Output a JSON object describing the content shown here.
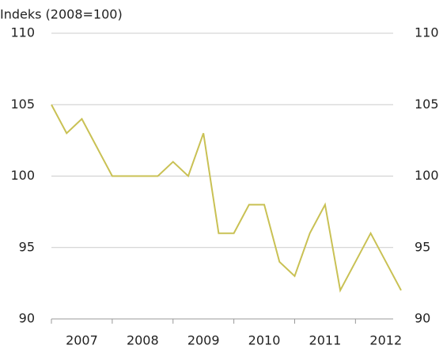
{
  "chart_data": {
    "type": "line",
    "title": "Indeks (2008=100)",
    "categories": [
      null,
      null,
      "2007",
      null,
      null,
      null,
      "2008",
      null,
      null,
      null,
      "2009",
      null,
      null,
      null,
      "2010",
      null,
      null,
      null,
      "2011",
      null,
      null,
      null,
      "2012",
      null
    ],
    "series": [
      {
        "name": null,
        "color": "#c9c154",
        "values": [
          105,
          103,
          104,
          102,
          100,
          100,
          100,
          100,
          101,
          100,
          103,
          96,
          96,
          98,
          98,
          94,
          93,
          96,
          98,
          92,
          94,
          96,
          94,
          92
        ]
      }
    ],
    "ylim": [
      90,
      110
    ],
    "yticks": [
      90,
      95,
      100,
      105,
      110
    ],
    "grid": true
  }
}
